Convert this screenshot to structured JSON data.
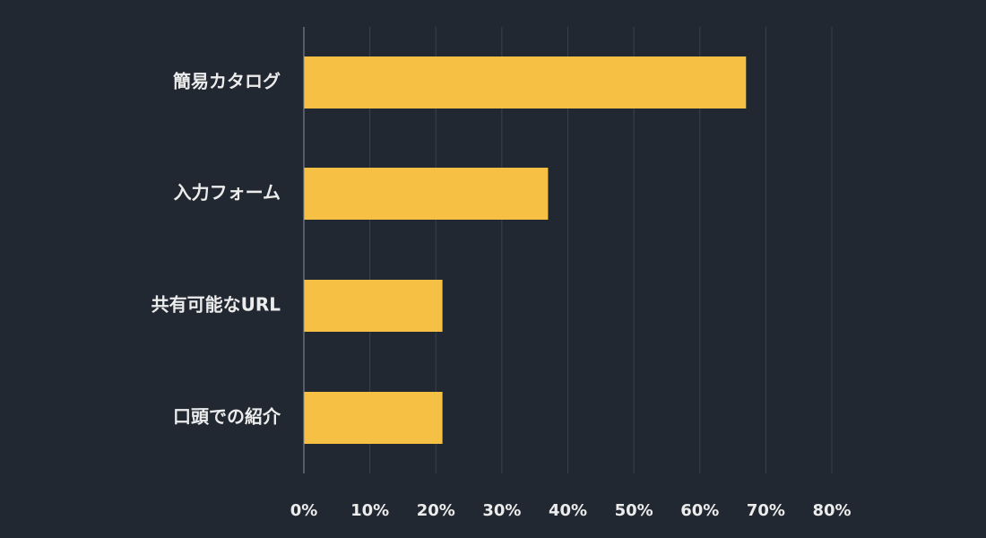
{
  "colors": {
    "background": "#222831",
    "bar": "#F5C043",
    "grid": "#3a414c",
    "axis": "#8a9099",
    "text": "#ececec"
  },
  "chart_data": {
    "type": "bar",
    "orientation": "horizontal",
    "title": "",
    "xlabel": "",
    "ylabel": "",
    "categories": [
      "簡易カタログ",
      "入力フォーム",
      "共有可能なURL",
      "口頭での紹介"
    ],
    "values": [
      67,
      37,
      21,
      21
    ],
    "xlim": [
      0,
      80
    ],
    "ticks": [
      0,
      10,
      20,
      30,
      40,
      50,
      60,
      70,
      80
    ],
    "tick_labels": [
      "0%",
      "10%",
      "20%",
      "30%",
      "40%",
      "50%",
      "60%",
      "70%",
      "80%"
    ],
    "grid": true,
    "legend": "none"
  }
}
